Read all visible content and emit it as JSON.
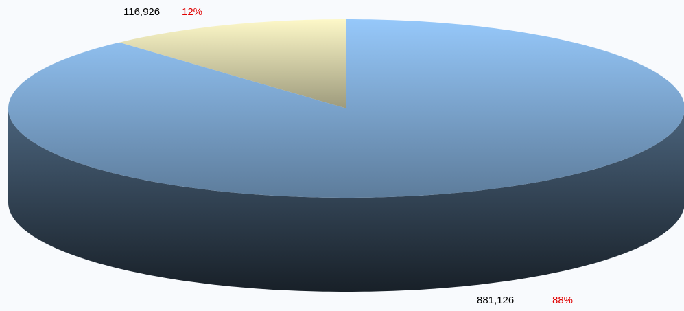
{
  "chart_data": {
    "type": "pie",
    "three_d": true,
    "values": [
      116926,
      881126
    ],
    "value_labels": [
      "116,926",
      "881,126"
    ],
    "percents": [
      12,
      88
    ],
    "percent_labels": [
      "12%",
      "88%"
    ],
    "colors": [
      "#fdf8c8",
      "#96c8fa"
    ]
  }
}
